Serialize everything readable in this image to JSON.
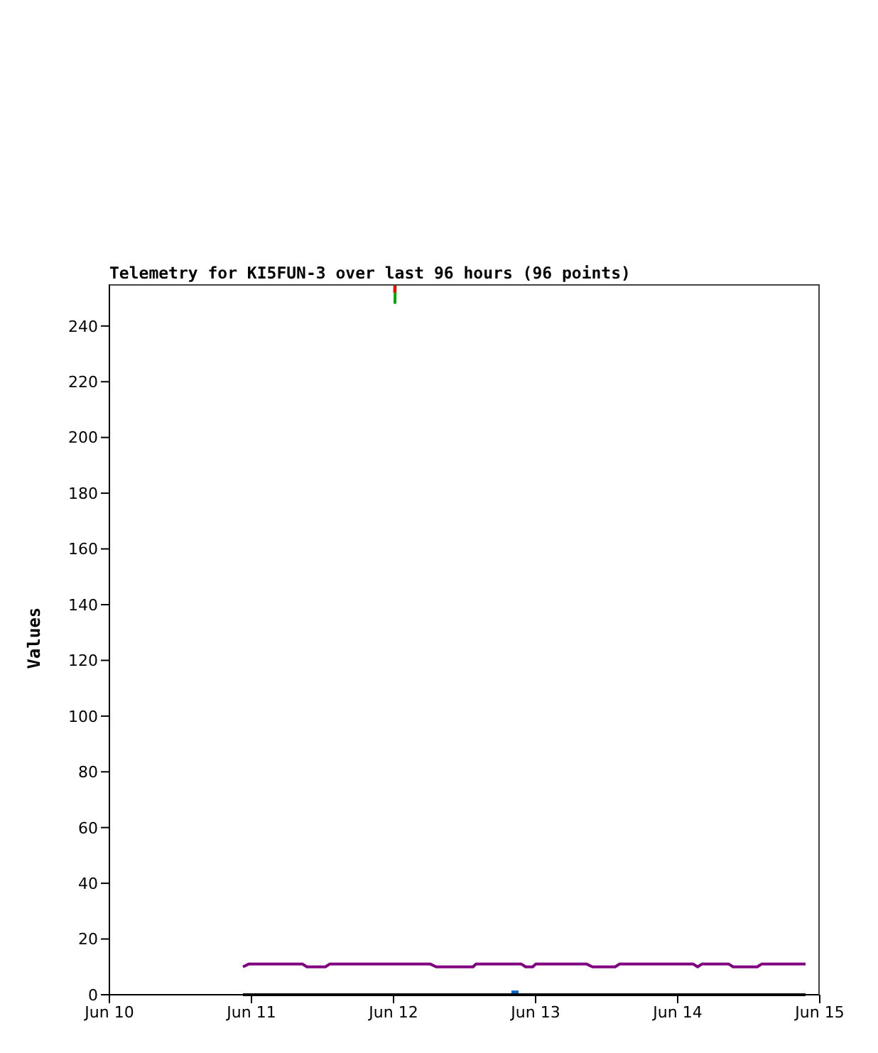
{
  "chart_data": {
    "type": "line",
    "title": "Telemetry for KI5FUN-3 over last 96 hours (96 points)",
    "ylabel": "Values",
    "xlim": [
      "--06-10",
      "--06-15"
    ],
    "xticks": [
      {
        "value": "--06-10",
        "label": "Jun 10"
      },
      {
        "value": "--06-11",
        "label": "Jun 11"
      },
      {
        "value": "--06-12",
        "label": "Jun 12"
      },
      {
        "value": "--06-13",
        "label": "Jun 13"
      },
      {
        "value": "--06-14",
        "label": "Jun 14"
      },
      {
        "value": "--06-15",
        "label": "Jun 15"
      }
    ],
    "ylim": [
      0,
      255
    ],
    "yticks": [
      0,
      20,
      40,
      60,
      80,
      100,
      120,
      140,
      160,
      180,
      200,
      220,
      240
    ],
    "series": [
      {
        "color": "#000000",
        "x": [
          "--06-10T22:34",
          "--06-14T21:36"
        ],
        "values": [
          0,
          0
        ]
      },
      {
        "color": "#0066cc",
        "x": [
          "--06-12T19:55",
          "--06-12T21:07"
        ],
        "values": [
          1,
          1
        ]
      },
      {
        "color": "#800080",
        "x": [
          "--06-10T22:34",
          "--06-10T23:31",
          "--06-11T08:38",
          "--06-11T09:22",
          "--06-11T12:29",
          "--06-11T13:12",
          "--06-12T06:14",
          "--06-12T07:12",
          "--06-12T13:26",
          "--06-12T13:55",
          "--06-12T21:36",
          "--06-12T22:19",
          "--06-12T23:31",
          "--06-13T00:00",
          "--06-13T08:38",
          "--06-13T09:36",
          "--06-13T13:26",
          "--06-13T14:10",
          "--06-14T02:38",
          "--06-14T03:22",
          "--06-14T04:05",
          "--06-14T08:38",
          "--06-14T09:22",
          "--06-14T13:26",
          "--06-14T14:10",
          "--06-14T21:36"
        ],
        "values": [
          10,
          11,
          11,
          10,
          10,
          11,
          11,
          10,
          10,
          11,
          11,
          10,
          10,
          11,
          11,
          10,
          10,
          11,
          11,
          10,
          11,
          11,
          10,
          10,
          11,
          11
        ]
      },
      {
        "color": "#00aa00",
        "x": [
          "--06-12T00:14",
          "--06-12T00:18"
        ],
        "values": [
          248,
          255
        ]
      },
      {
        "color": "#ff0000",
        "x": [
          "--06-12T00:11",
          "--06-12T00:13"
        ],
        "values": [
          252,
          255
        ]
      }
    ]
  }
}
